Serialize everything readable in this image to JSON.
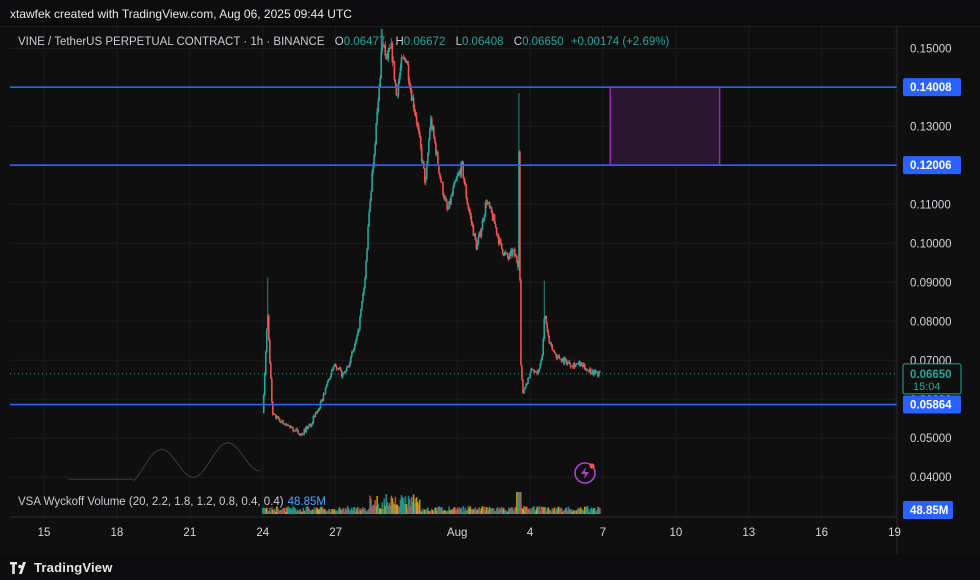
{
  "header": {
    "attribution": "xtawfek created with TradingView.com, Aug 06, 2025 09:44 UTC"
  },
  "legend": {
    "symbol": "VINE / TetherUS PERPETUAL CONTRACT · 1h · BINANCE",
    "o_label": "O",
    "o_value": "0.06477",
    "h_label": "H",
    "h_value": "0.06672",
    "l_label": "L",
    "l_value": "0.06408",
    "c_label": "C",
    "c_value": "0.06650",
    "change": "+0.00174 (+2.69%)"
  },
  "indicator": {
    "label": "VSA Wyckoff Volume (20, 2.2, 1.8, 1.2, 0.8, 0.4, 0.4)",
    "value": "48.85M"
  },
  "footer": {
    "brand": "TradingView"
  },
  "colors": {
    "up": "#26a69a",
    "down": "#ef5350",
    "level_line": "#2962ff",
    "zone_fill": "#2a1630",
    "zone_border": "#9c27b0",
    "price_label": "#2962ff"
  },
  "icons": [
    "lightning-icon",
    "tradingview-logo-icon"
  ],
  "chart_data": {
    "type": "candlestick",
    "title": "VINE / TetherUS PERPETUAL CONTRACT · 1h · BINANCE",
    "y_ticks": [
      "0.15000",
      "0.14000",
      "0.13000",
      "0.12000",
      "0.11000",
      "0.10000",
      "0.09000",
      "0.08000",
      "0.07000",
      "0.06000",
      "0.05000",
      "0.04000"
    ],
    "ylim": [
      0.038,
      0.155
    ],
    "x_ticks": [
      {
        "label": "15",
        "day": 15
      },
      {
        "label": "18",
        "day": 18
      },
      {
        "label": "21",
        "day": 21
      },
      {
        "label": "24",
        "day": 24
      },
      {
        "label": "27",
        "day": 27
      },
      {
        "label": "Aug",
        "day": 32
      },
      {
        "label": "4",
        "day": 35
      },
      {
        "label": "7",
        "day": 38
      },
      {
        "label": "10",
        "day": 41
      },
      {
        "label": "13",
        "day": 44
      },
      {
        "label": "16",
        "day": 47
      },
      {
        "label": "19",
        "day": 50
      }
    ],
    "xlim_days": [
      13.6,
      50.1
    ],
    "horizontal_levels": [
      {
        "value": 0.14008,
        "label": "0.14008"
      },
      {
        "value": 0.12006,
        "label": "0.12006"
      },
      {
        "value": 0.05864,
        "label": "0.05864"
      }
    ],
    "current_price": {
      "value": 0.0665,
      "label": "0.06650",
      "countdown": "15:04"
    },
    "volume_label": "48.85M",
    "zone": {
      "day_start": 38.3,
      "day_end": 42.8,
      "price_low": 0.12006,
      "price_high": 0.14008
    },
    "price_path": [
      [
        24.0,
        0.0565
      ],
      [
        24.2,
        0.082
      ],
      [
        24.4,
        0.056
      ],
      [
        24.8,
        0.054
      ],
      [
        25.2,
        0.0525
      ],
      [
        25.6,
        0.051
      ],
      [
        26.0,
        0.054
      ],
      [
        26.4,
        0.059
      ],
      [
        26.7,
        0.065
      ],
      [
        27.0,
        0.069
      ],
      [
        27.3,
        0.066
      ],
      [
        27.6,
        0.07
      ],
      [
        27.9,
        0.076
      ],
      [
        28.2,
        0.09
      ],
      [
        28.4,
        0.11
      ],
      [
        28.6,
        0.125
      ],
      [
        28.8,
        0.14
      ],
      [
        28.9,
        0.152
      ],
      [
        29.1,
        0.147
      ],
      [
        29.3,
        0.15
      ],
      [
        29.5,
        0.138
      ],
      [
        29.7,
        0.146
      ],
      [
        29.9,
        0.148
      ],
      [
        30.1,
        0.139
      ],
      [
        30.3,
        0.133
      ],
      [
        30.5,
        0.124
      ],
      [
        30.7,
        0.115
      ],
      [
        30.9,
        0.132
      ],
      [
        31.1,
        0.125
      ],
      [
        31.3,
        0.117
      ],
      [
        31.6,
        0.108
      ],
      [
        31.9,
        0.115
      ],
      [
        32.2,
        0.12
      ],
      [
        32.4,
        0.111
      ],
      [
        32.6,
        0.105
      ],
      [
        32.8,
        0.099
      ],
      [
        33.0,
        0.104
      ],
      [
        33.2,
        0.111
      ],
      [
        33.5,
        0.106
      ],
      [
        33.8,
        0.099
      ],
      [
        34.1,
        0.096
      ],
      [
        34.3,
        0.098
      ],
      [
        34.5,
        0.095
      ],
      [
        34.55,
        0.131
      ],
      [
        34.6,
        0.07
      ],
      [
        34.7,
        0.062
      ],
      [
        34.9,
        0.065
      ],
      [
        35.1,
        0.068
      ],
      [
        35.3,
        0.066
      ],
      [
        35.5,
        0.072
      ],
      [
        35.6,
        0.082
      ],
      [
        35.8,
        0.074
      ],
      [
        36.1,
        0.071
      ],
      [
        36.4,
        0.07
      ],
      [
        36.7,
        0.069
      ],
      [
        37.0,
        0.069
      ],
      [
        37.3,
        0.068
      ],
      [
        37.6,
        0.067
      ],
      [
        37.9,
        0.0665
      ]
    ]
  }
}
